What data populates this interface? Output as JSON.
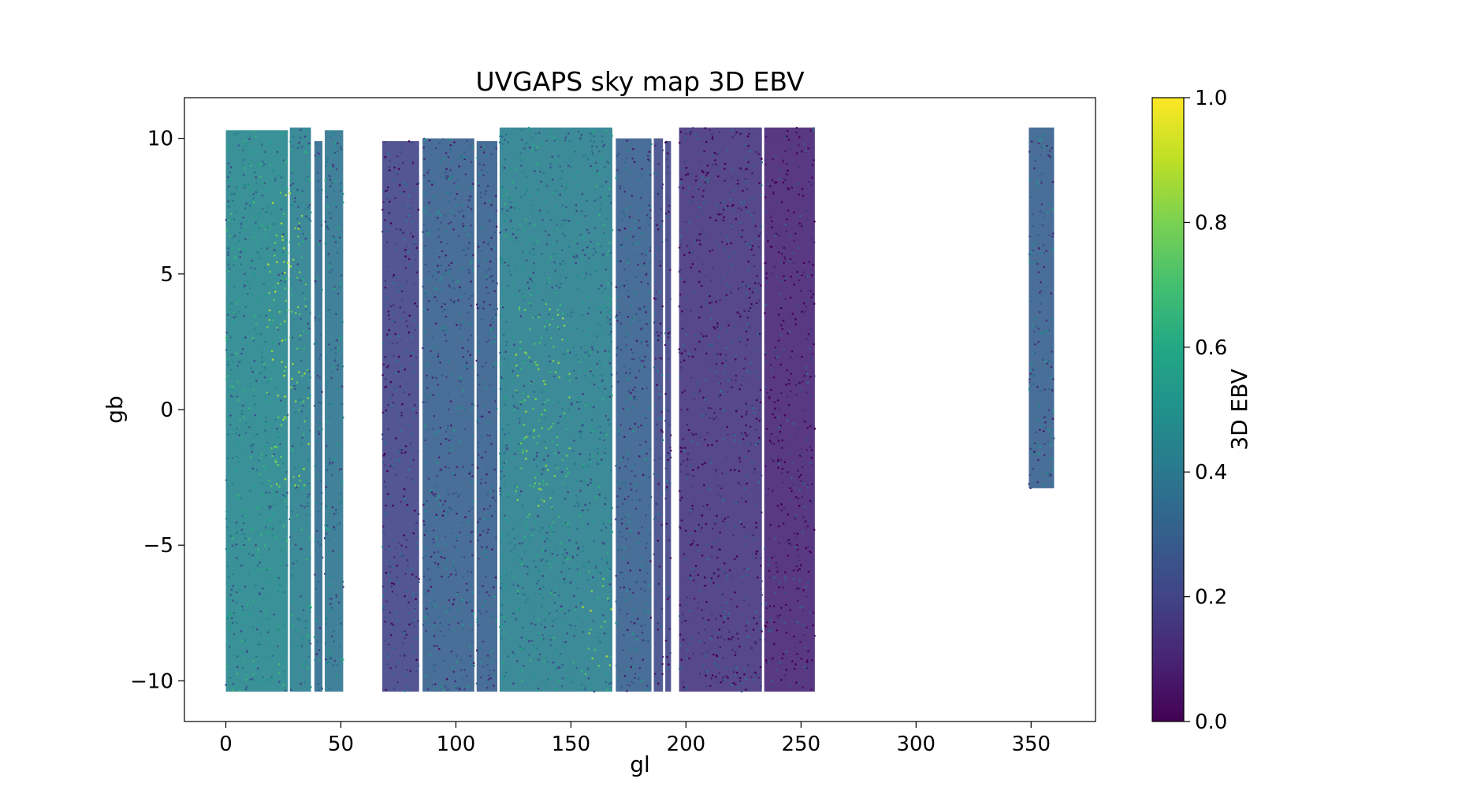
{
  "chart_data": {
    "type": "scatter",
    "title": "UVGAPS sky map 3D EBV",
    "xlabel": "gl",
    "ylabel": "gb",
    "xlim": [
      -18,
      378
    ],
    "ylim": [
      -11.5,
      11.5
    ],
    "x_ticks": [
      0,
      50,
      100,
      150,
      200,
      250,
      300,
      350
    ],
    "x_tick_labels": [
      "0",
      "50",
      "100",
      "150",
      "200",
      "250",
      "300",
      "350"
    ],
    "y_ticks": [
      -10,
      -5,
      0,
      5,
      10
    ],
    "y_tick_labels": [
      "−10",
      "−5",
      "0",
      "5",
      "10"
    ],
    "grid": false,
    "colormap": "viridis",
    "colorbar": {
      "label": "3D EBV",
      "range": [
        0.0,
        1.0
      ],
      "ticks": [
        0.0,
        0.2,
        0.4,
        0.6,
        0.8,
        1.0
      ],
      "tick_labels": [
        "0.0",
        "0.2",
        "0.4",
        "0.6",
        "0.8",
        "1.0"
      ]
    },
    "coverage_strips": [
      {
        "gl_start": 0,
        "gl_end": 27,
        "gb_min": -10.4,
        "gb_max": 10.3,
        "mean_ebv": 0.45
      },
      {
        "gl_start": 27.8,
        "gl_end": 37,
        "gb_min": -10.4,
        "gb_max": 10.4,
        "mean_ebv": 0.42
      },
      {
        "gl_start": 38.5,
        "gl_end": 42,
        "gb_min": -10.4,
        "gb_max": 9.9,
        "mean_ebv": 0.35
      },
      {
        "gl_start": 43,
        "gl_end": 51,
        "gb_min": -10.4,
        "gb_max": 10.3,
        "mean_ebv": 0.38
      },
      {
        "gl_start": 68,
        "gl_end": 84,
        "gb_min": -10.4,
        "gb_max": 9.9,
        "mean_ebv": 0.2
      },
      {
        "gl_start": 85.5,
        "gl_end": 108,
        "gb_min": -10.4,
        "gb_max": 10.0,
        "mean_ebv": 0.3
      },
      {
        "gl_start": 109,
        "gl_end": 118,
        "gb_min": -10.4,
        "gb_max": 9.9,
        "mean_ebv": 0.3
      },
      {
        "gl_start": 119,
        "gl_end": 168,
        "gb_min": -10.4,
        "gb_max": 10.4,
        "mean_ebv": 0.42
      },
      {
        "gl_start": 169.5,
        "gl_end": 185,
        "gb_min": -10.4,
        "gb_max": 10.0,
        "mean_ebv": 0.3
      },
      {
        "gl_start": 186,
        "gl_end": 190,
        "gb_min": -10.4,
        "gb_max": 10.0,
        "mean_ebv": 0.22
      },
      {
        "gl_start": 191,
        "gl_end": 193.5,
        "gb_min": -10.4,
        "gb_max": 9.9,
        "mean_ebv": 0.2
      },
      {
        "gl_start": 197,
        "gl_end": 233,
        "gb_min": -10.4,
        "gb_max": 10.4,
        "mean_ebv": 0.15
      },
      {
        "gl_start": 234,
        "gl_end": 256,
        "gb_min": -10.4,
        "gb_max": 10.4,
        "mean_ebv": 0.1
      },
      {
        "gl_start": 349,
        "gl_end": 360,
        "gb_min": -2.9,
        "gb_max": 10.4,
        "mean_ebv": 0.3
      }
    ],
    "notes_high_ebv_regions": [
      {
        "gl": [
          18,
          36
        ],
        "gb": [
          -3,
          8
        ],
        "ebv": 0.9
      },
      {
        "gl": [
          125,
          150
        ],
        "gb": [
          -4,
          4
        ],
        "ebv": 0.85
      },
      {
        "gl": [
          155,
          168
        ],
        "gb": [
          -10,
          -6
        ],
        "ebv": 0.9
      }
    ]
  }
}
